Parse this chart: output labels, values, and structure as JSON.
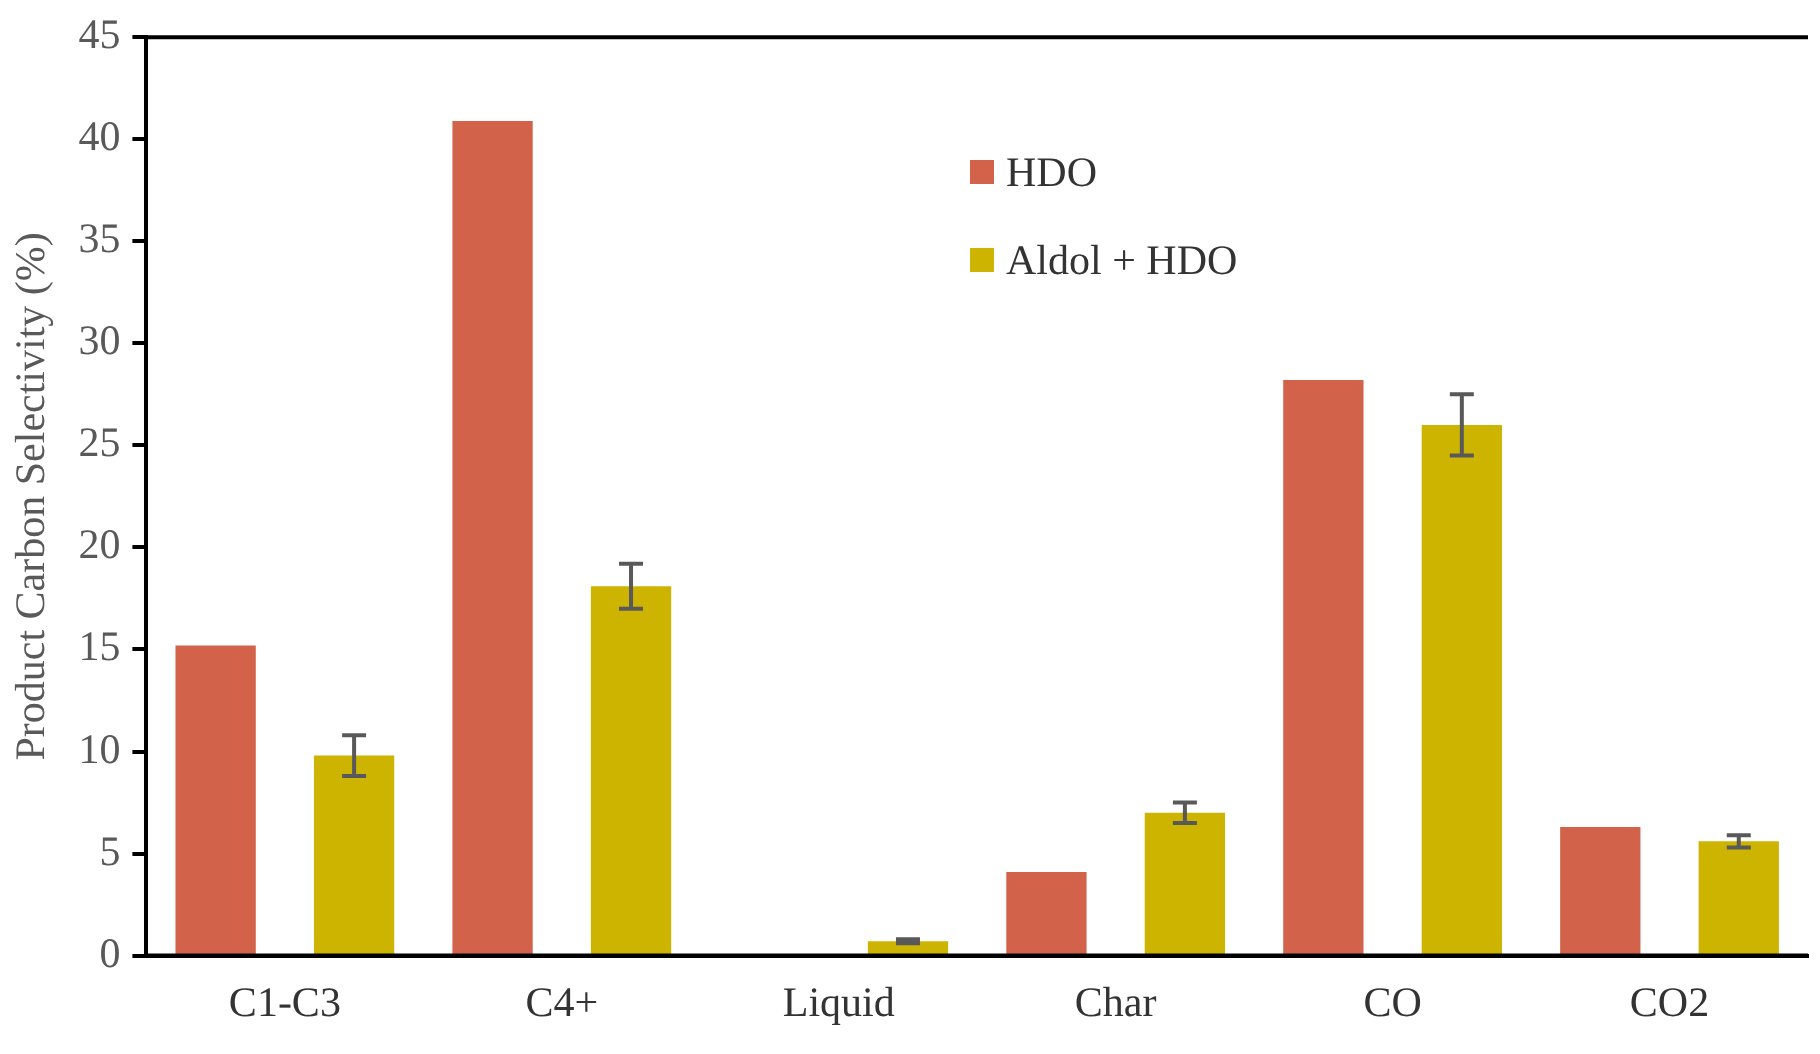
{
  "chart_data": {
    "type": "bar",
    "ylabel": "Product Carbon Selectivity (%)",
    "categories": [
      "C1-C3",
      "C4+",
      "Liquid",
      "Char",
      "CO",
      "CO2"
    ],
    "series": [
      {
        "name": "HDO",
        "color": "#d2634a",
        "values": [
          15.2,
          40.9,
          0,
          4.1,
          28.2,
          6.3
        ]
      },
      {
        "name": "Aldol + HDO",
        "color": "#ccb400",
        "values": [
          9.8,
          18.1,
          0.7,
          7.0,
          26.0,
          5.6
        ],
        "errors": [
          1.0,
          1.1,
          0.1,
          0.5,
          1.5,
          0.3
        ]
      }
    ],
    "ylim": [
      0,
      45
    ],
    "yticks": [
      0,
      5,
      10,
      15,
      20,
      25,
      30,
      35,
      40,
      45
    ],
    "grid": false,
    "legend": "top"
  }
}
